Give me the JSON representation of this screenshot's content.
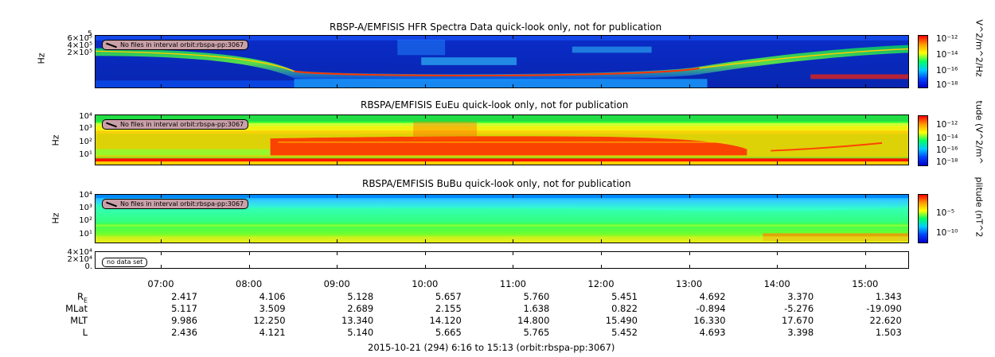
{
  "panels": [
    {
      "title": "RBSP-A/EMFISIS  HFR Spectra Data quick-look only, not for publication",
      "ylabel": "Hz",
      "yticks": [
        "6×10⁵",
        "4×10⁵",
        "2×10⁵"
      ],
      "ytick_top": "5",
      "badge": "No files in interval orbit:rbspa-pp:3067",
      "colorbar_title": "V^2/m^2/Hz",
      "colorbar_ticks": [
        "10⁻¹²",
        "10⁻¹⁴",
        "10⁻¹⁶",
        "10⁻¹⁸"
      ]
    },
    {
      "title": "RBSPA/EMFISIS  EuEu quick-look only, not for publication",
      "ylabel": "Hz",
      "yticks": [
        "10⁴",
        "10³",
        "10²",
        "10¹"
      ],
      "badge": "No files in interval orbit:rbspa-pp:3067",
      "colorbar_title": "tude (V^2/m^",
      "colorbar_ticks": [
        "10⁻¹²",
        "10⁻¹⁴",
        "10⁻¹⁶",
        "10⁻¹⁸"
      ]
    },
    {
      "title": "RBSPA/EMFISIS  BuBu quick-look only, not for publication",
      "ylabel": "Hz",
      "yticks": [
        "10⁴",
        "10³",
        "10²",
        "10¹"
      ],
      "badge": "No files in interval orbit:rbspa-pp:3067",
      "colorbar_title": "plitude (nT^2",
      "colorbar_ticks": [
        "10⁻⁵",
        "10⁻¹⁰"
      ]
    },
    {
      "yticks": [
        "4×10⁴",
        "2×10⁴",
        "0."
      ],
      "badge": "no data set"
    }
  ],
  "chart_data": {
    "type": "heatmap",
    "x_range": [
      "2015-10-21 06:16",
      "2015-10-21 15:13"
    ],
    "time_ticks": [
      "07:00",
      "08:00",
      "09:00",
      "10:00",
      "11:00",
      "12:00",
      "13:00",
      "14:00",
      "15:00"
    ],
    "ephemeris": [
      {
        "label": "R",
        "sub": "E",
        "values": [
          "2.417",
          "4.106",
          "5.128",
          "5.657",
          "5.760",
          "5.451",
          "4.692",
          "3.370",
          "1.343"
        ]
      },
      {
        "label": "MLat",
        "sub": "",
        "values": [
          "5.117",
          "3.509",
          "2.689",
          "2.155",
          "1.638",
          "0.822",
          "-0.894",
          "-5.276",
          "-19.090"
        ]
      },
      {
        "label": "MLT",
        "sub": "",
        "values": [
          "9.986",
          "12.250",
          "13.340",
          "14.120",
          "14.800",
          "15.490",
          "16.330",
          "17.670",
          "22.620"
        ]
      },
      {
        "label": "L",
        "sub": "",
        "values": [
          "2.436",
          "4.121",
          "5.140",
          "5.665",
          "5.765",
          "5.452",
          "4.693",
          "3.398",
          "1.503"
        ]
      }
    ],
    "footer": "2015-10-21 (294) 6:16 to 15:13 (orbit:rbspa-pp:3067)"
  }
}
